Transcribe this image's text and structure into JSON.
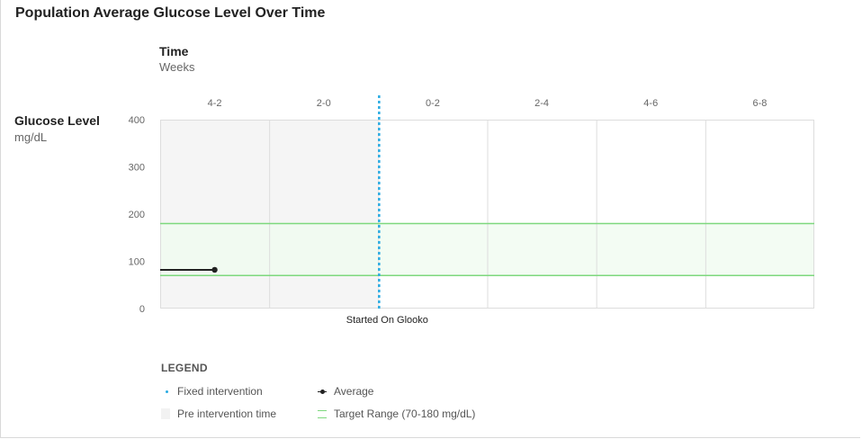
{
  "title": "Population Average Glucose Level Over Time",
  "x_axis": {
    "title": "Time",
    "unit": "Weeks"
  },
  "y_axis": {
    "title": "Glucose Level",
    "unit": "mg/dL"
  },
  "legend": {
    "title": "LEGEND",
    "fixed_intervention": "Fixed intervention",
    "pre_intervention": "Pre intervention time",
    "average": "Average",
    "target_range": "Target Range (70-180 mg/dL)"
  },
  "colors": {
    "intervention_line": "#29abe2",
    "target_range": "#7ed87e",
    "target_fill": "#effbef",
    "pre_intervention_fill": "#f5f5f5",
    "average": "#222222",
    "grid": "#dddddd"
  },
  "chart_data": {
    "type": "line",
    "title": "Population Average Glucose Level Over Time",
    "xlabel": "Time",
    "ylabel": "Glucose Level",
    "categories": [
      "4-2",
      "2-0",
      "0-2",
      "2-4",
      "4-6",
      "6-8"
    ],
    "ylim": [
      0,
      400
    ],
    "yticks": [
      0,
      100,
      200,
      300,
      400
    ],
    "target_range": [
      70,
      180
    ],
    "pre_intervention_categories": [
      "4-2",
      "2-0"
    ],
    "intervention_label": "Started On Glooko",
    "intervention_at": "between 2-0 and 0-2",
    "series": [
      {
        "name": "Average",
        "segment_start": "4-2 start",
        "segment_end": "4-2",
        "value": 82
      }
    ],
    "grid": true,
    "legend_position": "bottom-left"
  }
}
